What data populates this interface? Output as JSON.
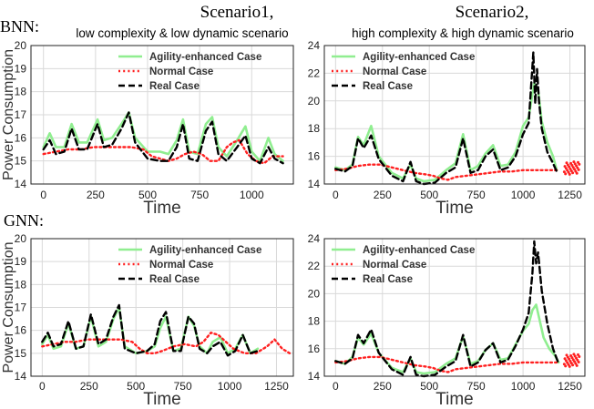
{
  "header": {
    "row1_label": "BNN:",
    "row2_label": "GNN:",
    "scenario1_title": "Scenario1,",
    "scenario1_subtitle": "low complexity & low dynamic scenario",
    "scenario2_title": "Scenario2,",
    "scenario2_subtitle": "high complexity & high dynamic scenario"
  },
  "legend_labels": [
    "Agility-enhanced Case",
    "Normal Case",
    "Real Case"
  ],
  "colors": {
    "agility": "#90ee90",
    "normal": "#ff2020",
    "real": "#000000",
    "grid": "#d9d9d9",
    "scatter": "#ff2020"
  },
  "chart_data": [
    {
      "id": "bnn-s1",
      "type": "line",
      "xlabel": "Time",
      "ylabel": "Power Consumption",
      "xlim": [
        -60,
        1200
      ],
      "ylim": [
        14,
        20
      ],
      "xticks": [
        0,
        250,
        500,
        750,
        1000
      ],
      "yticks": [
        14,
        15,
        16,
        17,
        18,
        19,
        20
      ],
      "legend": "top-right",
      "series": [
        {
          "name": "Agility-enhanced Case",
          "style": "solid",
          "color": "#90ee90",
          "x": [
            0,
            30,
            60,
            100,
            135,
            170,
            210,
            260,
            290,
            330,
            375,
            410,
            440,
            500,
            560,
            600,
            640,
            670,
            700,
            740,
            780,
            810,
            840,
            880,
            930,
            970,
            1000,
            1040,
            1080,
            1110,
            1150
          ],
          "y": [
            15.6,
            16.2,
            15.6,
            15.6,
            16.6,
            15.8,
            15.8,
            16.8,
            15.9,
            16.0,
            16.6,
            17.1,
            16.0,
            15.4,
            15.4,
            15.3,
            15.9,
            16.8,
            15.4,
            15.3,
            16.6,
            16.9,
            15.6,
            15.2,
            15.9,
            16.5,
            15.4,
            15.0,
            16.0,
            15.3,
            15.0
          ]
        },
        {
          "name": "Normal Case",
          "style": "dotted",
          "color": "#ff2020",
          "x": [
            0,
            60,
            120,
            180,
            240,
            300,
            360,
            420,
            480,
            520,
            560,
            600,
            640,
            680,
            720,
            760,
            800,
            840,
            880,
            910,
            940,
            980,
            1020,
            1060,
            1100,
            1150
          ],
          "y": [
            15.3,
            15.4,
            15.5,
            15.5,
            15.6,
            15.6,
            15.6,
            15.6,
            15.5,
            15.2,
            15.1,
            15.0,
            15.1,
            15.3,
            15.4,
            15.3,
            15.0,
            15.0,
            15.6,
            15.8,
            15.9,
            15.3,
            15.0,
            14.9,
            15.2,
            15.2
          ]
        },
        {
          "name": "Real Case",
          "style": "dashed",
          "color": "#000000",
          "x": [
            0,
            30,
            60,
            100,
            135,
            170,
            210,
            260,
            290,
            330,
            375,
            410,
            440,
            500,
            560,
            600,
            640,
            670,
            700,
            740,
            780,
            810,
            840,
            880,
            930,
            970,
            1000,
            1040,
            1080,
            1110,
            1150
          ],
          "y": [
            15.5,
            15.9,
            15.3,
            15.4,
            16.4,
            15.5,
            15.5,
            16.6,
            15.6,
            15.7,
            16.4,
            17.1,
            15.8,
            15.1,
            15.0,
            15.0,
            15.6,
            16.6,
            15.1,
            15.0,
            16.3,
            16.7,
            15.3,
            15.0,
            15.6,
            16.1,
            15.1,
            14.9,
            15.6,
            15.1,
            14.9
          ]
        }
      ]
    },
    {
      "id": "bnn-s2",
      "type": "line",
      "xlabel": "Time",
      "ylabel": "",
      "xlim": [
        -60,
        1330
      ],
      "ylim": [
        14,
        24
      ],
      "xticks": [
        0,
        250,
        500,
        750,
        1000,
        1250
      ],
      "yticks": [
        14,
        16,
        18,
        20,
        22,
        24
      ],
      "legend": "top-left",
      "series": [
        {
          "name": "Agility-enhanced Case",
          "style": "solid",
          "color": "#90ee90",
          "x": [
            0,
            50,
            90,
            120,
            150,
            190,
            230,
            300,
            360,
            400,
            430,
            470,
            530,
            590,
            640,
            680,
            720,
            760,
            800,
            840,
            880,
            920,
            960,
            1000,
            1030,
            1050,
            1060,
            1080,
            1100,
            1130,
            1160,
            1180
          ],
          "y": [
            15.2,
            15.0,
            15.4,
            17.4,
            16.8,
            18.2,
            16.0,
            14.8,
            14.4,
            15.4,
            14.4,
            14.2,
            14.3,
            15.0,
            15.5,
            17.6,
            15.0,
            15.3,
            16.2,
            16.8,
            15.3,
            15.4,
            16.3,
            18.2,
            18.8,
            20.5,
            21.3,
            20.8,
            18.5,
            17.0,
            16.0,
            15.0
          ]
        },
        {
          "name": "Normal Case",
          "style": "dotted",
          "color": "#ff2020",
          "x": [
            0,
            60,
            120,
            180,
            240,
            300,
            360,
            420,
            480,
            520,
            560,
            600,
            640,
            700,
            760,
            820,
            880,
            940,
            1000,
            1060,
            1120,
            1180
          ],
          "y": [
            15.0,
            15.1,
            15.3,
            15.4,
            15.4,
            15.2,
            15.0,
            14.8,
            14.7,
            14.6,
            14.4,
            14.3,
            14.5,
            14.6,
            14.7,
            14.8,
            14.9,
            14.9,
            15.0,
            15.0,
            15.0,
            15.0
          ]
        },
        {
          "name": "Real Case",
          "style": "dashed",
          "color": "#000000",
          "x": [
            0,
            50,
            90,
            120,
            150,
            190,
            230,
            300,
            360,
            400,
            430,
            470,
            530,
            590,
            640,
            680,
            720,
            760,
            800,
            840,
            880,
            920,
            960,
            1000,
            1030,
            1045,
            1055,
            1065,
            1075,
            1085,
            1100,
            1130,
            1160,
            1180
          ],
          "y": [
            15.1,
            14.9,
            15.3,
            17.3,
            16.6,
            17.5,
            15.8,
            14.6,
            14.2,
            15.6,
            14.2,
            14.0,
            14.1,
            14.8,
            15.2,
            17.3,
            14.8,
            15.0,
            16.0,
            16.5,
            15.0,
            15.2,
            16.0,
            17.6,
            18.4,
            21.5,
            23.5,
            19.8,
            22.3,
            20.0,
            18.0,
            16.3,
            15.5,
            14.9
          ]
        }
      ],
      "scatter": {
        "x_range": [
          1220,
          1300
        ],
        "y_range": [
          14.7,
          15.6
        ]
      }
    },
    {
      "id": "gnn-s1",
      "type": "line",
      "xlabel": "Time",
      "ylabel": "Power Consumption",
      "xlim": [
        -60,
        1340
      ],
      "ylim": [
        14,
        20
      ],
      "xticks": [
        0,
        250,
        500,
        750,
        1000,
        1250
      ],
      "yticks": [
        14,
        15,
        16,
        17,
        18,
        19,
        20
      ],
      "legend": "top-right",
      "series": [
        {
          "name": "Agility-enhanced Case",
          "style": "solid",
          "color": "#90ee90",
          "x": [
            0,
            30,
            60,
            100,
            140,
            180,
            220,
            260,
            300,
            340,
            380,
            410,
            440,
            500,
            560,
            600,
            630,
            660,
            700,
            740,
            780,
            810,
            840,
            880,
            910,
            950,
            990,
            1030,
            1070,
            1110,
            1150
          ],
          "y": [
            15.4,
            15.8,
            15.2,
            15.3,
            16.3,
            15.2,
            15.3,
            16.6,
            15.3,
            15.5,
            16.5,
            17.0,
            15.3,
            15.0,
            15.1,
            15.3,
            16.1,
            16.6,
            15.1,
            15.2,
            16.6,
            16.2,
            15.3,
            15.0,
            15.5,
            15.7,
            15.0,
            15.2,
            15.8,
            15.0,
            15.2
          ]
        },
        {
          "name": "Normal Case",
          "style": "dotted",
          "color": "#ff2020",
          "x": [
            0,
            60,
            120,
            180,
            240,
            300,
            360,
            420,
            480,
            520,
            560,
            600,
            640,
            700,
            760,
            820,
            860,
            900,
            940,
            980,
            1020,
            1080,
            1140,
            1200,
            1240,
            1280,
            1320
          ],
          "y": [
            15.3,
            15.4,
            15.5,
            15.5,
            15.6,
            15.6,
            15.6,
            15.6,
            15.5,
            15.2,
            15.0,
            15.0,
            15.1,
            15.3,
            15.4,
            15.3,
            15.5,
            15.9,
            15.8,
            15.5,
            15.2,
            15.0,
            15.0,
            15.3,
            15.6,
            15.2,
            15.0
          ]
        },
        {
          "name": "Real Case",
          "style": "dashed",
          "color": "#000000",
          "x": [
            0,
            30,
            60,
            100,
            140,
            180,
            220,
            260,
            300,
            340,
            380,
            410,
            440,
            500,
            560,
            600,
            630,
            660,
            700,
            740,
            780,
            810,
            840,
            880,
            910,
            950,
            990,
            1030,
            1070,
            1110,
            1150
          ],
          "y": [
            15.5,
            15.9,
            15.3,
            15.4,
            16.4,
            15.2,
            15.3,
            16.7,
            15.4,
            15.6,
            16.6,
            17.1,
            15.2,
            15.0,
            15.1,
            15.4,
            16.4,
            16.8,
            15.1,
            15.1,
            16.6,
            16.3,
            15.2,
            15.0,
            15.3,
            15.5,
            14.9,
            15.1,
            15.8,
            15.0,
            15.1
          ]
        }
      ]
    },
    {
      "id": "gnn-s2",
      "type": "line",
      "xlabel": "Time",
      "ylabel": "",
      "xlim": [
        -60,
        1330
      ],
      "ylim": [
        14,
        24
      ],
      "xticks": [
        0,
        250,
        500,
        750,
        1000,
        1250
      ],
      "yticks": [
        14,
        16,
        18,
        20,
        22,
        24
      ],
      "legend": "top-left",
      "series": [
        {
          "name": "Agility-enhanced Case",
          "style": "solid",
          "color": "#90ee90",
          "x": [
            0,
            50,
            90,
            120,
            150,
            190,
            230,
            300,
            360,
            400,
            430,
            470,
            530,
            590,
            640,
            680,
            720,
            760,
            800,
            840,
            880,
            920,
            960,
            1000,
            1030,
            1050,
            1070,
            1090,
            1110,
            1140,
            1170,
            1190
          ],
          "y": [
            15.1,
            14.9,
            15.4,
            16.8,
            16.3,
            17.1,
            15.7,
            14.6,
            14.3,
            15.3,
            14.3,
            14.2,
            14.3,
            14.9,
            15.3,
            16.9,
            14.9,
            15.1,
            15.9,
            16.4,
            15.2,
            15.3,
            16.3,
            17.3,
            17.8,
            18.8,
            19.2,
            18.0,
            16.8,
            16.0,
            15.5,
            15.0
          ]
        },
        {
          "name": "Normal Case",
          "style": "dotted",
          "color": "#ff2020",
          "x": [
            0,
            60,
            120,
            180,
            240,
            300,
            360,
            420,
            480,
            520,
            560,
            600,
            640,
            700,
            760,
            820,
            880,
            940,
            1000,
            1060,
            1120,
            1180
          ],
          "y": [
            15.0,
            15.1,
            15.3,
            15.4,
            15.4,
            15.2,
            15.0,
            14.8,
            14.7,
            14.6,
            14.4,
            14.3,
            14.5,
            14.6,
            14.7,
            14.8,
            14.9,
            14.9,
            15.0,
            15.0,
            15.0,
            15.0
          ]
        },
        {
          "name": "Real Case",
          "style": "dashed",
          "color": "#000000",
          "x": [
            0,
            50,
            90,
            120,
            150,
            190,
            230,
            300,
            360,
            400,
            430,
            470,
            530,
            590,
            640,
            680,
            720,
            760,
            800,
            840,
            880,
            920,
            960,
            1000,
            1030,
            1050,
            1060,
            1070,
            1080,
            1100,
            1130,
            1160,
            1190
          ],
          "y": [
            15.1,
            14.9,
            15.3,
            17.0,
            16.4,
            17.4,
            15.7,
            14.5,
            14.1,
            15.4,
            14.1,
            14.0,
            14.1,
            14.7,
            15.1,
            17.0,
            14.7,
            15.0,
            15.9,
            16.4,
            15.0,
            15.2,
            16.2,
            17.4,
            18.6,
            21.5,
            23.8,
            22.2,
            23.0,
            20.2,
            17.8,
            16.0,
            14.9
          ]
        }
      ],
      "scatter": {
        "x_range": [
          1220,
          1300
        ],
        "y_range": [
          14.7,
          15.6
        ]
      }
    }
  ]
}
